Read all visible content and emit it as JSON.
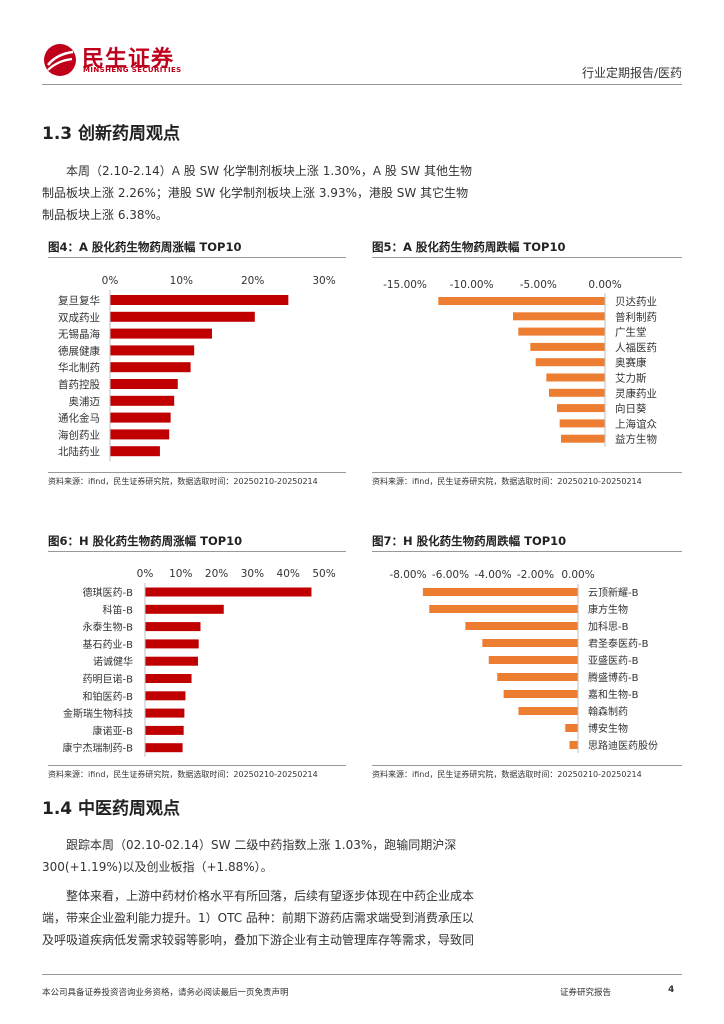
{
  "header": {
    "brand_cn": "民生证券",
    "brand_en": "MINSHENG SECURITIES",
    "doc_type": "行业定期报告/医药",
    "brand_color": "#c0001b"
  },
  "section_1_3": {
    "title": "1.3 创新药周观点",
    "paragraph": "本周（2.10-2.14）A 股 SW 化学制剂板块上涨 1.30%，A 股 SW 其他生物制品板块上涨 2.26%；港股 SW 化学制剂板块上涨 3.93%，港股 SW 其它生物制品板块上涨 6.38%。"
  },
  "figures": {
    "fig4": {
      "title": "图4：A 股化药生物药周涨幅 TOP10",
      "source": "资料来源：ifind，民生证券研究院，数据选取时间：20250210-20250214"
    },
    "fig5": {
      "title": "图5：A 股化药生物药周跌幅 TOP10",
      "source": "资料来源：ifind，民生证券研究院，数据选取时间：20250210-20250214"
    },
    "fig6": {
      "title": "图6：H 股化药生物药周涨幅 TOP10",
      "source": "资料来源：ifind，民生证券研究院，数据选取时间：20250210-20250214"
    },
    "fig7": {
      "title": "图7：H 股化药生物药周跌幅 TOP10",
      "source": "资料来源：ifind，民生证券研究院，数据选取时间：20250210-20250214"
    }
  },
  "section_1_4": {
    "title": "1.4 中医药周观点",
    "paragraph1": "跟踪本周（02.10-02.14）SW 二级中药指数上涨 1.03%，跑输同期沪深300(+1.19%)以及创业板指（+1.88%）。",
    "paragraph2": "整体来看，上游中药材价格水平有所回落，后续有望逐步体现在中药企业成本端，带来企业盈利能力提升。1）OTC 品种：前期下游药店需求端受到消费承压以及呼吸道疾病低发需求较弱等影响，叠加下游企业有主动管理库存等需求，导致同"
  },
  "footer": {
    "disclaimer": "本公司具备证券投资咨询业务资格，请务必阅读最后一页免责声明",
    "label": "证券研究报告",
    "page": "4"
  },
  "chart_data": [
    {
      "id": "fig4",
      "type": "bar",
      "orientation": "horizontal",
      "color": "#c00000",
      "categories": [
        "复旦复华",
        "双成药业",
        "无锡晶海",
        "德展健康",
        "华北制药",
        "首药控股",
        "奥浦迈",
        "通化金马",
        "海创药业",
        "北陆药业"
      ],
      "values": [
        25.0,
        20.3,
        14.3,
        11.8,
        11.3,
        9.5,
        9.0,
        8.5,
        8.3,
        7.0
      ],
      "ticks": [
        0,
        10,
        20,
        30
      ],
      "tick_labels": [
        "0%",
        "10%",
        "20%",
        "30%"
      ],
      "xlim": [
        0,
        30
      ],
      "axis_position": "top",
      "labels_side": "left"
    },
    {
      "id": "fig5",
      "type": "bar",
      "orientation": "horizontal",
      "color": "#ed7d31",
      "categories": [
        "贝达药业",
        "普利制药",
        "广生堂",
        "人福医药",
        "奥赛康",
        "艾力斯",
        "灵康药业",
        "向日葵",
        "上海谊众",
        "益方生物"
      ],
      "values": [
        -12.5,
        -6.9,
        -6.5,
        -5.6,
        -5.2,
        -4.4,
        -4.2,
        -3.6,
        -3.4,
        -3.3
      ],
      "ticks": [
        -15,
        -10,
        -5,
        0
      ],
      "tick_labels": [
        "-15.00%",
        "-10.00%",
        "-5.00%",
        "0.00%"
      ],
      "xlim": [
        -15,
        0
      ],
      "axis_position": "top",
      "labels_side": "right"
    },
    {
      "id": "fig6",
      "type": "bar",
      "orientation": "horizontal",
      "color": "#c00000",
      "categories": [
        "德琪医药-B",
        "科笛-B",
        "永泰生物-B",
        "基石药业-B",
        "诺诚健华",
        "药明巨诺-B",
        "和铂医药-B",
        "金斯瑞生物科技",
        "康诺亚-B",
        "康宁杰瑞制药-B"
      ],
      "values": [
        46.5,
        22.0,
        15.5,
        15.0,
        14.8,
        13.0,
        11.3,
        11.0,
        10.8,
        10.5
      ],
      "ticks": [
        0,
        10,
        20,
        30,
        40,
        50
      ],
      "tick_labels": [
        "0%",
        "10%",
        "20%",
        "30%",
        "40%",
        "50%"
      ],
      "xlim": [
        0,
        50
      ],
      "axis_position": "top",
      "labels_side": "left"
    },
    {
      "id": "fig7",
      "type": "bar",
      "orientation": "horizontal",
      "color": "#ed7d31",
      "categories": [
        "云顶新耀-B",
        "康方生物",
        "加科思-B",
        "君圣泰医药-B",
        "亚盛医药-B",
        "腾盛博药-B",
        "嘉和生物-B",
        "翰森制药",
        "博安生物",
        "思路迪医药股份"
      ],
      "values": [
        -7.3,
        -7.0,
        -5.3,
        -4.5,
        -4.2,
        -3.8,
        -3.5,
        -2.8,
        -0.6,
        -0.4
      ],
      "ticks": [
        -8,
        -6,
        -4,
        -2,
        0
      ],
      "tick_labels": [
        "-8.00%",
        "-6.00%",
        "-4.00%",
        "-2.00%",
        "0.00%"
      ],
      "xlim": [
        -8,
        0
      ],
      "axis_position": "top",
      "labels_side": "right"
    }
  ]
}
